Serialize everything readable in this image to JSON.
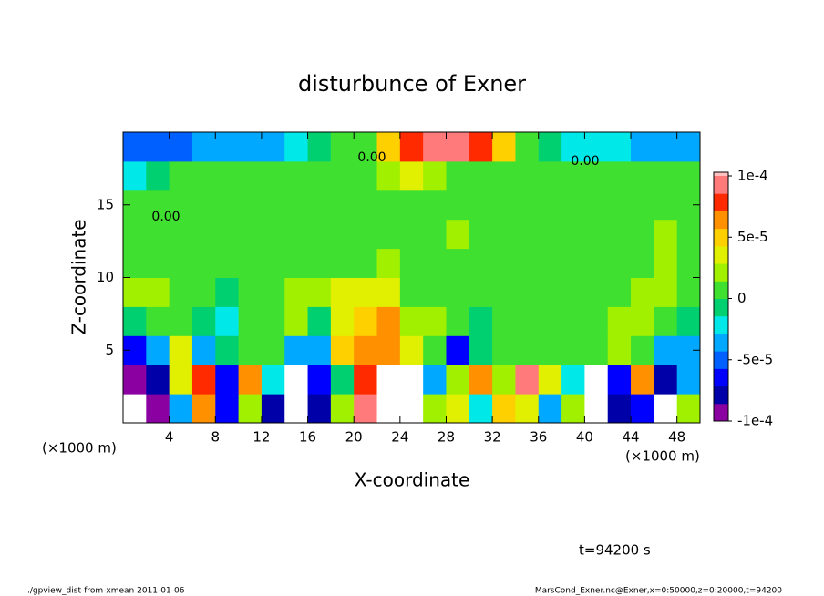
{
  "chart_data": {
    "type": "heatmap",
    "title": "disturbunce of Exner",
    "x_label": "X-coordinate",
    "y_label": "Z-coordinate",
    "x_unit_labels": [
      "(×1000 m)",
      "(×1000 m)"
    ],
    "time_label": "t=94200 s",
    "footer_left": "./gpview_dist-from-xmean  2011-01-06",
    "footer_right": "MarsCond_Exner.nc@Exner,x=0:50000,z=0:20000,t=94200",
    "contour_labels": [
      "0.00",
      "0.00",
      "0.00"
    ],
    "xlim": [
      0,
      50
    ],
    "ylim": [
      0,
      20
    ],
    "xticks": [
      4,
      8,
      12,
      16,
      20,
      24,
      28,
      32,
      36,
      40,
      44,
      48
    ],
    "yticks": [
      5,
      10,
      15
    ],
    "x": [
      1,
      3,
      5,
      7,
      9,
      11,
      13,
      15,
      17,
      19,
      21,
      23,
      25,
      27,
      29,
      31,
      33,
      35,
      37,
      39,
      41,
      43,
      45,
      47,
      49
    ],
    "y": [
      1,
      3,
      5,
      7,
      9,
      11,
      13,
      15,
      17,
      19
    ],
    "z": [
      [
        -0.00012,
        -0.0001,
        -4e-05,
        6e-05,
        -7e-05,
        2e-05,
        -8e-05,
        -0.00012,
        -8e-05,
        2e-05,
        0.0001,
        -0.00014,
        -0.00013,
        2e-05,
        3e-05,
        -2e-05,
        5e-05,
        4e-05,
        -4e-05,
        2e-05,
        -0.00014,
        -8e-05,
        -6e-05,
        -0.00012,
        2e-05
      ],
      [
        -0.0001,
        -8e-05,
        4e-05,
        8e-05,
        -6e-05,
        6e-05,
        -2e-05,
        -0.00012,
        -6e-05,
        -1e-05,
        8e-05,
        -0.00012,
        -0.00012,
        -4e-05,
        2e-05,
        6e-05,
        2e-05,
        9e-05,
        4e-05,
        -2e-05,
        -0.00012,
        -6e-05,
        6e-05,
        -8e-05,
        -3e-05
      ],
      [
        -6e-05,
        -4e-05,
        3e-05,
        -4e-05,
        -1e-05,
        1e-05,
        0,
        -3e-05,
        -3e-05,
        5e-05,
        6e-05,
        6e-05,
        3e-05,
        1e-05,
        -6e-05,
        -1e-05,
        0,
        0,
        1e-05,
        1e-05,
        1e-05,
        2e-05,
        1e-05,
        -3e-05,
        -4e-05
      ],
      [
        -1e-05,
        0,
        1e-05,
        -1e-05,
        -2e-05,
        0,
        1e-05,
        2e-05,
        -1e-05,
        3e-05,
        5e-05,
        6e-05,
        2e-05,
        2e-05,
        1e-05,
        -1e-05,
        1e-05,
        1e-05,
        1e-05,
        1e-05,
        1e-05,
        2e-05,
        2e-05,
        0,
        -1e-05
      ],
      [
        2e-05,
        2e-05,
        1e-05,
        0,
        -1e-05,
        1e-05,
        1e-05,
        2e-05,
        2e-05,
        3e-05,
        3e-05,
        3e-05,
        1e-05,
        0,
        1e-05,
        1e-05,
        1e-05,
        1e-05,
        0,
        1e-05,
        1e-05,
        1e-05,
        2e-05,
        2e-05,
        0
      ],
      [
        1e-05,
        1e-05,
        0,
        0,
        1e-05,
        1e-05,
        1e-05,
        1e-05,
        1e-05,
        1e-05,
        1e-05,
        2e-05,
        1e-05,
        1e-05,
        1e-05,
        1e-05,
        1e-05,
        1e-05,
        1e-05,
        1e-05,
        1e-05,
        0,
        1e-05,
        2e-05,
        1e-05
      ],
      [
        0,
        0,
        0,
        1e-05,
        1e-05,
        1e-05,
        1e-05,
        1e-05,
        1e-05,
        1e-05,
        1e-05,
        1e-05,
        1e-05,
        1e-05,
        2e-05,
        1e-05,
        1e-05,
        1e-05,
        1e-05,
        1e-05,
        1e-05,
        0,
        1e-05,
        2e-05,
        1e-05
      ],
      [
        0,
        0,
        0,
        1e-05,
        1e-05,
        1e-05,
        1e-05,
        1e-05,
        1e-05,
        1e-05,
        1e-05,
        1e-05,
        1e-05,
        1e-05,
        1e-05,
        1e-05,
        1e-05,
        1e-05,
        1e-05,
        1e-05,
        1e-05,
        0,
        0,
        1e-05,
        1e-05
      ],
      [
        -2e-05,
        -1e-05,
        0,
        0,
        0,
        0,
        0,
        1e-05,
        1e-05,
        1e-05,
        1e-05,
        2e-05,
        3e-05,
        2e-05,
        1e-05,
        1e-05,
        0,
        0,
        0,
        0,
        0,
        0,
        0,
        0,
        0
      ],
      [
        -5e-05,
        -5e-05,
        -5e-05,
        -4e-05,
        -4e-05,
        -3e-05,
        -3e-05,
        -2e-05,
        -1e-05,
        0,
        1e-05,
        5e-05,
        8e-05,
        0.0001,
        0.0001,
        8e-05,
        5e-05,
        1e-05,
        -1e-05,
        -2e-05,
        -2e-05,
        -2e-05,
        -3e-05,
        -3e-05,
        -3e-05
      ]
    ],
    "clim": [
      -0.0001,
      0.0001
    ],
    "colors": [
      "#8a00a0",
      "#0000a8",
      "#0000ff",
      "#0060ff",
      "#00a8ff",
      "#00e8e8",
      "#00d070",
      "#40e030",
      "#a0f000",
      "#e0f000",
      "#ffd000",
      "#ff9000",
      "#ff2a00",
      "#ff7a7a"
    ],
    "over_color": "#ffffff",
    "under_color": "#ffffff",
    "cticks": [
      {
        "value": 0.0001,
        "label": "1e-4"
      },
      {
        "value": 5e-05,
        "label": "5e-5"
      },
      0,
      {
        "value": -5e-05,
        "label": "-5e-5"
      },
      {
        "value": -0.0001,
        "label": "-1e-4"
      }
    ]
  }
}
